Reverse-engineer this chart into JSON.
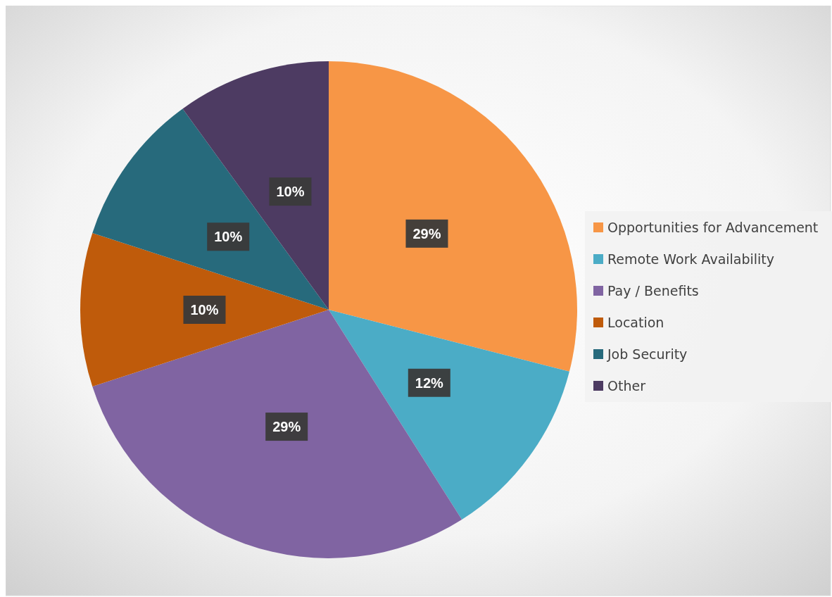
{
  "chart_data": {
    "type": "pie",
    "categories": [
      "Opportunities for Advancement",
      "Remote Work Availability",
      "Pay / Benefits",
      "Location",
      "Job Security",
      "Other"
    ],
    "values": [
      29,
      12,
      29,
      10,
      10,
      10
    ],
    "colors": [
      "#f79646",
      "#4bacc6",
      "#8064a2",
      "#bf5b0b",
      "#276a7c",
      "#4d3b62"
    ],
    "value_labels": [
      "29%",
      "12%",
      "29%",
      "10%",
      "10%",
      "10%"
    ],
    "legend": "right"
  }
}
